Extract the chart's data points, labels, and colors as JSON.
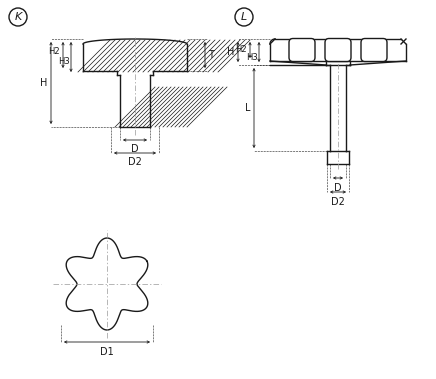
{
  "bg_color": "#ffffff",
  "line_color": "#1a1a1a",
  "hatch_color": "#1a1a1a",
  "dim_color": "#1a1a1a",
  "center_line_color": "#999999",
  "label_K": "K",
  "label_L": "L",
  "labels": [
    "H",
    "H2",
    "H3",
    "T",
    "D",
    "D2",
    "D1",
    "L"
  ],
  "figsize": [
    4.36,
    3.79
  ],
  "dpi": 100,
  "xlim": [
    0,
    436
  ],
  "ylim": [
    0,
    379
  ]
}
